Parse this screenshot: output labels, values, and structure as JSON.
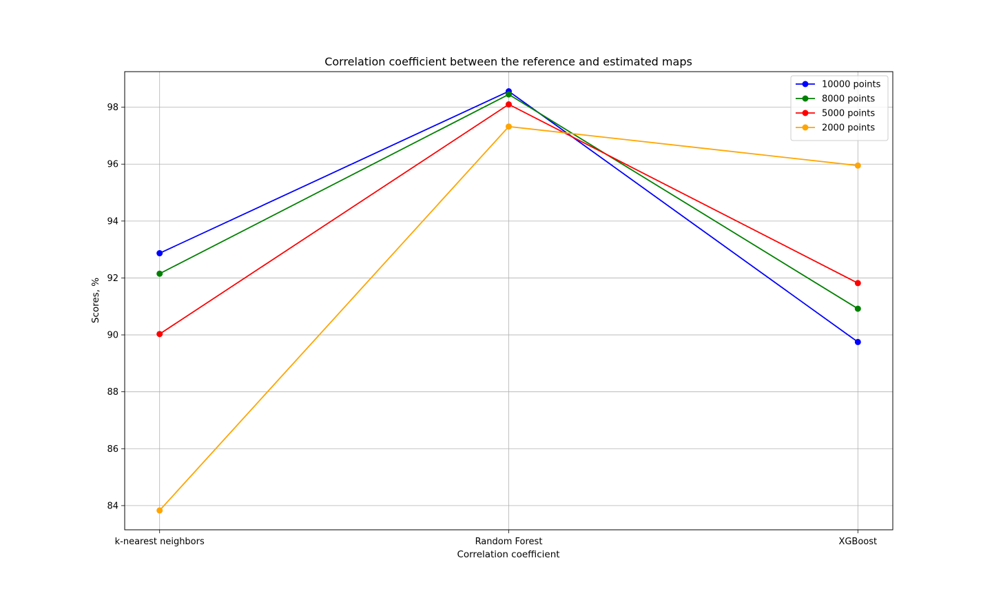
{
  "chart_data": {
    "type": "line",
    "title": "Correlation coefficient between the reference and estimated maps",
    "xlabel": "Correlation coefficient",
    "ylabel": "Scores, %",
    "categories": [
      "k-nearest neighbors",
      "Random Forest",
      "XGBoost"
    ],
    "ylim": [
      83.15,
      99.25
    ],
    "yticks": [
      84,
      86,
      88,
      90,
      92,
      94,
      96,
      98
    ],
    "grid": true,
    "legend_position": "top-right",
    "series": [
      {
        "name": "10000 points",
        "color": "#0000ff",
        "values": [
          92.87,
          98.56,
          89.75
        ]
      },
      {
        "name": "8000 points",
        "color": "#008000",
        "values": [
          92.15,
          98.45,
          90.92
        ]
      },
      {
        "name": "5000 points",
        "color": "#ff0000",
        "values": [
          90.03,
          98.1,
          91.82
        ]
      },
      {
        "name": "2000 points",
        "color": "#ffa500",
        "values": [
          83.83,
          97.32,
          95.95
        ]
      }
    ]
  }
}
